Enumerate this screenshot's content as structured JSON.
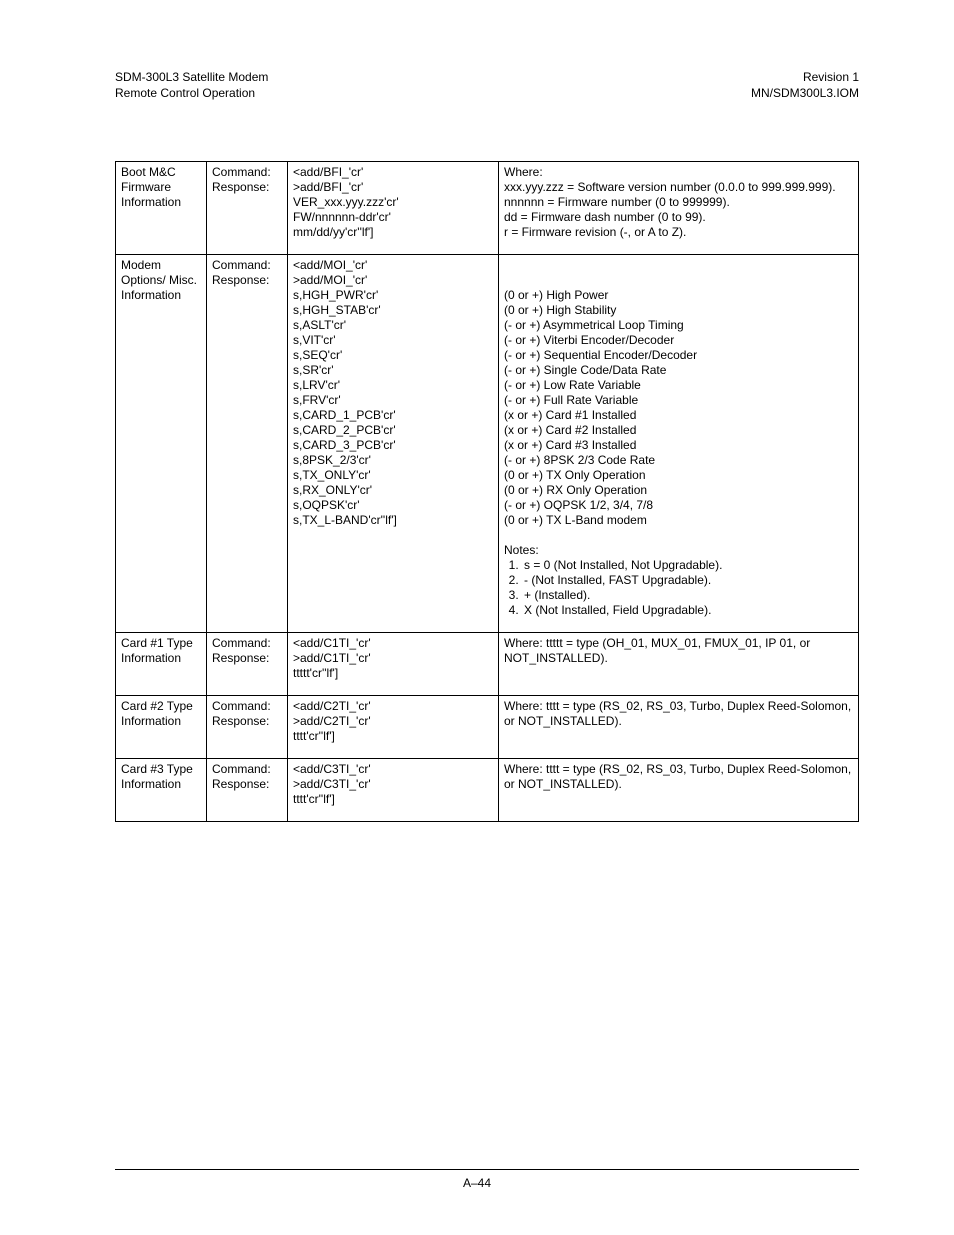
{
  "header": {
    "left_line1": "SDM-300L3 Satellite Modem",
    "left_line2": "Remote Control Operation",
    "right_line1": "Revision 1",
    "right_line2": "MN/SDM300L3.IOM"
  },
  "rows": [
    {
      "title": "Boot M&C Firmware Information",
      "labels": "Command:\nResponse:",
      "syntax": "<add/BFI_'cr'\n>add/BFI_'cr'\nVER_xxx.yyy.zzz'cr'\nFW/nnnnnn-ddr'cr'\nmm/dd/yy'cr''lf']",
      "desc_intro": "Where:",
      "desc_lines": "xxx.yyy.zzz = Software version number (0.0.0 to 999.999.999).\nnnnnnn = Firmware number (0 to 999999).\ndd = Firmware dash number (0 to 99).\nr = Firmware revision (-, or A to Z)."
    },
    {
      "title": "Modem Options/ Misc. Information",
      "labels": "Command:\nResponse:",
      "syntax": "<add/MOI_'cr'\n>add/MOI_'cr'\ns,HGH_PWR'cr'\ns,HGH_STAB'cr'\ns,ASLT'cr'\ns,VIT'cr'\ns,SEQ'cr'\ns,SR'cr'\ns,LRV'cr'\ns,FRV'cr'\ns,CARD_1_PCB'cr'\ns,CARD_2_PCB'cr'\ns,CARD_3_PCB'cr'\ns,8PSK_2/3'cr'\ns,TX_ONLY'cr'\ns,RX_ONLY'cr'\ns,OQPSK'cr'\ns,TX_L-BAND'cr''lf']",
      "desc_lines": "\n\n(0 or +) High Power\n(0 or +) High Stability\n(- or +) Asymmetrical Loop Timing\n(- or +) Viterbi Encoder/Decoder\n(- or +) Sequential Encoder/Decoder\n(- or +) Single Code/Data Rate\n(- or +) Low Rate Variable\n(- or +) Full Rate Variable\n(x or +) Card #1 Installed\n(x or +) Card #2 Installed\n(x or +) Card #3 Installed\n(- or +) 8PSK 2/3 Code Rate\n(0 or +) TX Only Operation\n(0 or +) RX Only Operation\n(- or +) OQPSK 1/2, 3/4, 7/8\n(0 or +) TX L-Band modem",
      "notes_heading": "Notes:",
      "notes": [
        "s = 0 (Not Installed, Not Upgradable).",
        "- (Not Installed, FAST Upgradable).",
        "+ (Installed).",
        "X (Not Installed, Field Upgradable)."
      ]
    },
    {
      "title": "Card #1 Type Information",
      "labels": "Command:\nResponse:",
      "syntax": "<add/C1TI_'cr'\n>add/C1TI_'cr'\nttttt'cr''lf']",
      "desc_lines": "Where: ttttt = type (OH_01, MUX_01, FMUX_01, IP 01, or NOT_INSTALLED)."
    },
    {
      "title": "Card #2 Type Information",
      "labels": "Command:\nResponse:",
      "syntax": "<add/C2TI_'cr'\n>add/C2TI_'cr'\ntttt'cr''lf']",
      "desc_lines": "Where: tttt = type (RS_02, RS_03, Turbo, Duplex Reed-Solomon,  or NOT_INSTALLED)."
    },
    {
      "title": "Card #3 Type Information",
      "labels": "Command:\nResponse:",
      "syntax": "<add/C3TI_'cr'\n>add/C3TI_'cr'\ntttt'cr''lf']",
      "desc_lines": "Where: tttt = type (RS_02, RS_03, Turbo, Duplex Reed-Solomon, or NOT_INSTALLED)."
    }
  ],
  "footer": {
    "page_number": "A–44"
  }
}
